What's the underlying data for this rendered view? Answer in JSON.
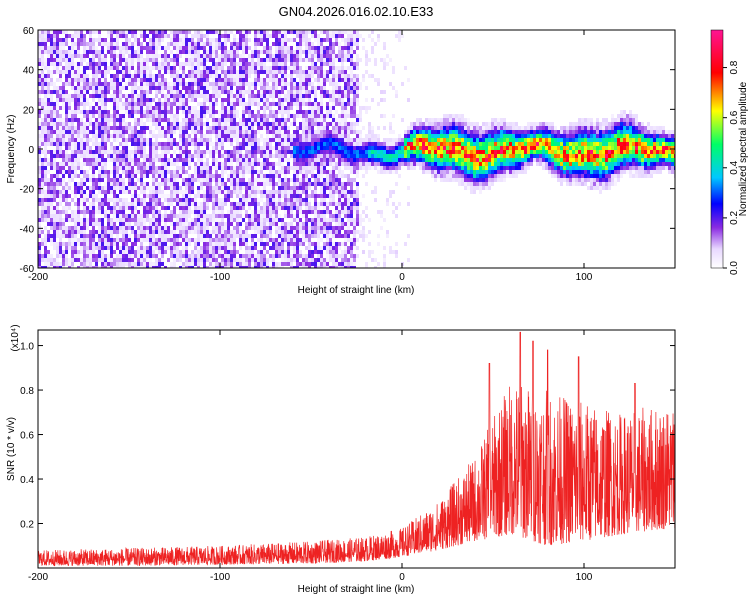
{
  "title": "GN04.2026.016.02.10.E33",
  "chart_data": [
    {
      "type": "heatmap",
      "xlabel": "Height of straight line (km)",
      "ylabel": "Frequency (Hz)",
      "xlim": [
        -200,
        150
      ],
      "ylim": [
        -60,
        60
      ],
      "xticks": [
        -200,
        -100,
        0,
        100
      ],
      "yticks": [
        -60,
        -40,
        -20,
        0,
        20,
        40,
        60
      ],
      "colorbar": {
        "label": "Normalized spectral amplitude",
        "range": [
          0,
          0.95
        ],
        "ticks": [
          0.0,
          0.2,
          0.4,
          0.6,
          0.8
        ],
        "tick_labels": [
          "0.0",
          "0.2",
          "0.4",
          "0.6",
          "0.8"
        ],
        "colors": [
          "#ffffff",
          "#e8d8ff",
          "#8a2be2",
          "#0000ff",
          "#00c8ff",
          "#00ff66",
          "#ffff00",
          "#ff0000",
          "#ff1493"
        ]
      },
      "description_values": {
        "noise_region_x": [
          -200,
          -25
        ],
        "noise_amplitude_range": [
          0.0,
          0.12
        ],
        "band_start_x": -60,
        "band_center_freq": 0,
        "band_peak_amplitude": 0.9
      }
    },
    {
      "type": "line",
      "xlabel": "Height of straight line (km)",
      "ylabel": "SNR (10 * v/v)",
      "yscale_label": "(x10⁴)",
      "xlim": [
        -200,
        150
      ],
      "ylim": [
        0,
        1.07
      ],
      "xticks": [
        -200,
        -100,
        0,
        100
      ],
      "yticks": [
        0.2,
        0.4,
        0.6,
        0.8,
        1.0
      ],
      "series": [
        {
          "color": "#ee2222",
          "envelope": [
            {
              "x": -200,
              "low": 0.01,
              "high": 0.08
            },
            {
              "x": -150,
              "low": 0.01,
              "high": 0.09
            },
            {
              "x": -100,
              "low": 0.015,
              "high": 0.1
            },
            {
              "x": -50,
              "low": 0.02,
              "high": 0.12
            },
            {
              "x": -20,
              "low": 0.03,
              "high": 0.14
            },
            {
              "x": 0,
              "low": 0.05,
              "high": 0.18
            },
            {
              "x": 20,
              "low": 0.08,
              "high": 0.3
            },
            {
              "x": 40,
              "low": 0.12,
              "high": 0.5
            },
            {
              "x": 60,
              "low": 0.15,
              "high": 0.85
            },
            {
              "x": 80,
              "low": 0.1,
              "high": 0.8
            },
            {
              "x": 100,
              "low": 0.12,
              "high": 0.75
            },
            {
              "x": 120,
              "low": 0.15,
              "high": 0.7
            },
            {
              "x": 150,
              "low": 0.18,
              "high": 0.75
            }
          ],
          "peaks": [
            {
              "x": 48,
              "y": 0.92
            },
            {
              "x": 65,
              "y": 1.06
            },
            {
              "x": 72,
              "y": 1.02
            },
            {
              "x": 80,
              "y": 0.98
            },
            {
              "x": 97,
              "y": 0.95
            },
            {
              "x": 128,
              "y": 0.83
            }
          ]
        }
      ]
    }
  ]
}
